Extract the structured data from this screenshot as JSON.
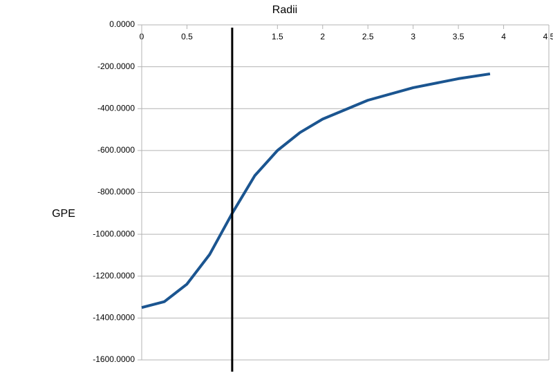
{
  "chart_data": {
    "type": "line",
    "title": "Radii",
    "y_label": "GPE",
    "x": [
      0,
      0.25,
      0.5,
      0.75,
      1,
      1.25,
      1.5,
      1.75,
      2,
      2.5,
      3,
      3.5,
      3.85
    ],
    "series": [
      {
        "color": "#1b5590",
        "values": [
          -1350,
          -1322,
          -1238,
          -1097,
          -900,
          -720,
          -600,
          -514,
          -450,
          -360,
          -300,
          -257,
          -234
        ]
      }
    ],
    "xlim": [
      0,
      4.5
    ],
    "xticks": [
      0,
      0.5,
      1.5,
      2,
      2.5,
      3,
      3.5,
      4,
      4.5
    ],
    "ylim": [
      -1600,
      0
    ],
    "yticks": [
      {
        "value": 0,
        "label": "0.0000"
      },
      {
        "value": -200,
        "label": "-200.0000"
      },
      {
        "value": -400,
        "label": "-400.0000"
      },
      {
        "value": -600,
        "label": "-600.0000"
      },
      {
        "value": -800,
        "label": "-800.0000"
      },
      {
        "value": -1000,
        "label": "-1000.0000"
      },
      {
        "value": -1200,
        "label": "-1200.0000"
      },
      {
        "value": -1400,
        "label": "-1400.0000"
      },
      {
        "value": -1600,
        "label": "-1600.0000"
      }
    ],
    "vline": 1,
    "vline_color": "#000000",
    "grid": true
  }
}
